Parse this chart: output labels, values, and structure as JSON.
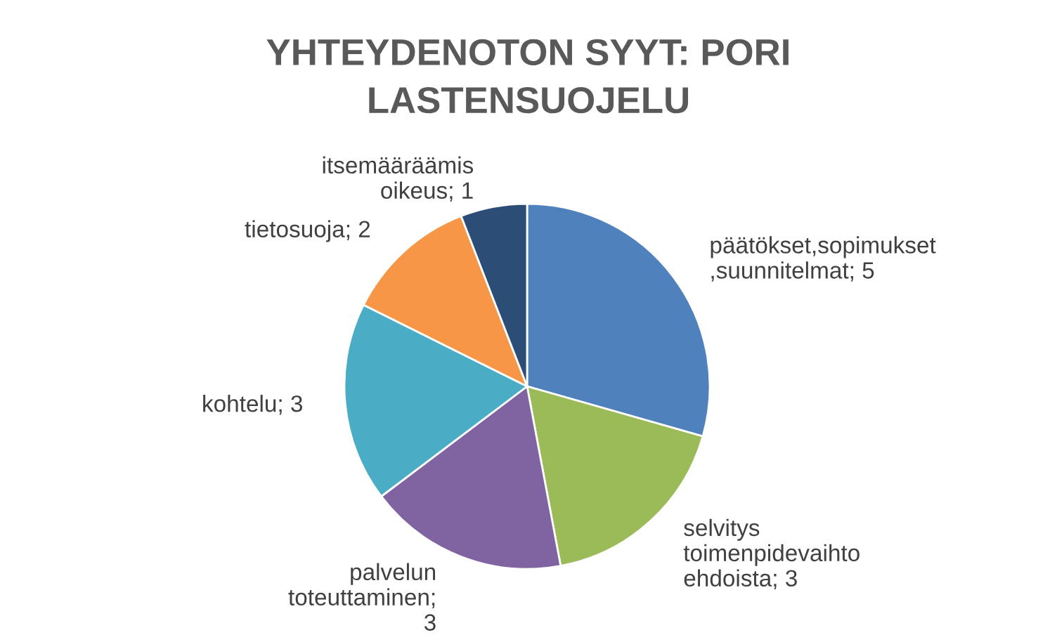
{
  "chart_data": {
    "type": "pie",
    "title": "YHTEYDENOTON SYYT: PORI\nLASTENSUOJELU",
    "categories": [
      "päätökset,sopimukset\n,suunnitelmat; 5",
      "selvitys\ntoimenpidevaihto\nehdoista; 3",
      "palvelun\ntoteuttaminen;\n3",
      "kohtelu; 3",
      "tietosuoja; 2",
      "itsemääräämis\noikeus; 1"
    ],
    "values": [
      5,
      3,
      3,
      3,
      2,
      1
    ],
    "colors": [
      "#4f81bd",
      "#9bbb59",
      "#8064a2",
      "#4bacc6",
      "#f79646",
      "#2c4d75"
    ]
  }
}
